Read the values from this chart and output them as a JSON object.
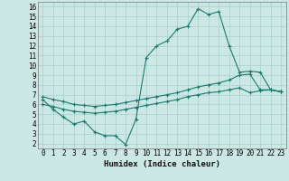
{
  "xlabel": "Humidex (Indice chaleur)",
  "xlim": [
    -0.5,
    23.5
  ],
  "ylim": [
    1.5,
    16.5
  ],
  "xticks": [
    0,
    1,
    2,
    3,
    4,
    5,
    6,
    7,
    8,
    9,
    10,
    11,
    12,
    13,
    14,
    15,
    16,
    17,
    18,
    19,
    20,
    21,
    22,
    23
  ],
  "yticks": [
    2,
    3,
    4,
    5,
    6,
    7,
    8,
    9,
    10,
    11,
    12,
    13,
    14,
    15,
    16
  ],
  "bg_color": "#cce8e4",
  "grid_color": "#aacfcb",
  "line_color": "#1a7a6e",
  "line1_x": [
    0,
    1,
    2,
    3,
    4,
    5,
    6,
    7,
    8,
    9,
    10,
    11,
    12,
    13,
    14,
    15,
    16,
    17,
    18,
    19,
    20,
    21,
    22,
    23
  ],
  "line1_y": [
    6.5,
    5.5,
    4.7,
    4.0,
    4.3,
    3.2,
    2.8,
    2.8,
    1.9,
    4.5,
    10.8,
    12.0,
    12.5,
    13.7,
    14.0,
    15.8,
    15.2,
    15.5,
    12.0,
    9.3,
    9.4,
    9.3,
    7.5,
    7.3
  ],
  "line2_x": [
    0,
    1,
    2,
    3,
    4,
    5,
    6,
    7,
    8,
    9,
    10,
    11,
    12,
    13,
    14,
    15,
    16,
    17,
    18,
    19,
    20,
    21,
    22,
    23
  ],
  "line2_y": [
    6.8,
    6.5,
    6.3,
    6.0,
    5.9,
    5.8,
    5.9,
    6.0,
    6.2,
    6.4,
    6.6,
    6.8,
    7.0,
    7.2,
    7.5,
    7.8,
    8.0,
    8.2,
    8.5,
    9.0,
    9.1,
    7.5,
    7.5,
    7.3
  ],
  "line3_x": [
    0,
    1,
    2,
    3,
    4,
    5,
    6,
    7,
    8,
    9,
    10,
    11,
    12,
    13,
    14,
    15,
    16,
    17,
    18,
    19,
    20,
    21,
    22,
    23
  ],
  "line3_y": [
    6.0,
    5.8,
    5.5,
    5.3,
    5.2,
    5.1,
    5.2,
    5.3,
    5.5,
    5.7,
    5.9,
    6.1,
    6.3,
    6.5,
    6.8,
    7.0,
    7.2,
    7.3,
    7.5,
    7.7,
    7.2,
    7.4,
    7.5,
    7.3
  ]
}
